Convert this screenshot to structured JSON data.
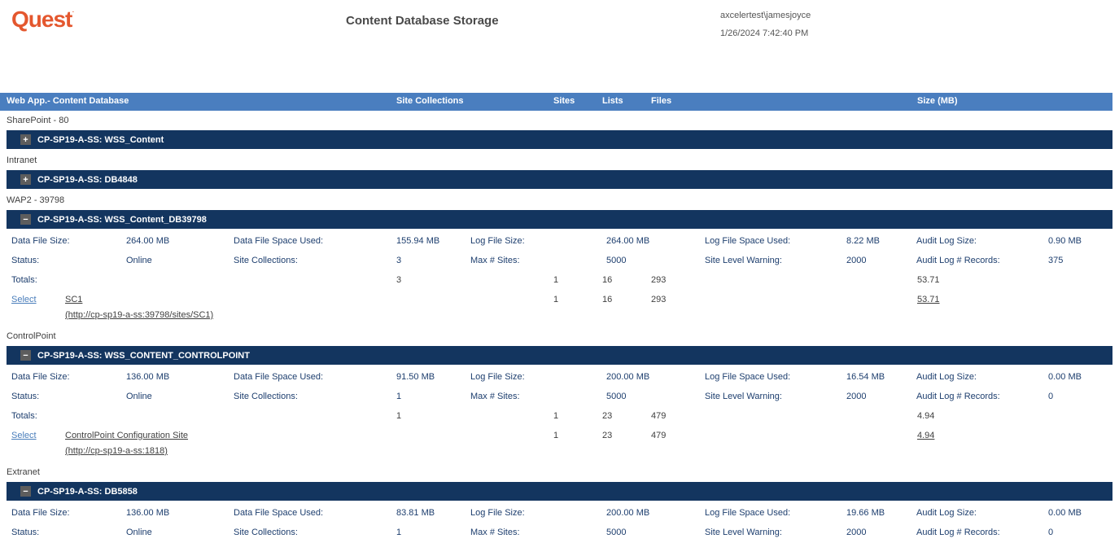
{
  "brand": {
    "logo_text": "Quest",
    "logo_color": "#E4572E"
  },
  "header": {
    "title": "Content Database Storage",
    "user": "axcelertest\\jamesjoyce",
    "timestamp": "1/26/2024 7:42:40 PM"
  },
  "colors": {
    "header_bar": "#4A7EBF",
    "group_bar": "#13355F",
    "link": "#4A7EBB"
  },
  "columns": {
    "web_app": "Web App.- Content Database",
    "site_collections": "Site Collections",
    "sites": "Sites",
    "lists": "Lists",
    "files": "Files",
    "size": "Size (MB)"
  },
  "sections": [
    {
      "web_app": "SharePoint - 80",
      "db": {
        "icon": "+",
        "name": "CP-SP19-A-SS: WSS_Content"
      }
    },
    {
      "web_app": "Intranet",
      "db": {
        "icon": "+",
        "name": "CP-SP19-A-SS: DB4848"
      }
    },
    {
      "web_app": "WAP2 - 39798",
      "db": {
        "icon": "−",
        "name": "CP-SP19-A-SS: WSS_Content_DB39798"
      },
      "detail": {
        "rows": [
          {
            "l1": "Data File Size:",
            "v1": "264.00 MB",
            "l2": "Data File Space Used:",
            "v2": "155.94 MB",
            "l3": "Log File Size:",
            "v3": "264.00 MB",
            "l4": "Log File Space Used:",
            "v4": "8.22 MB",
            "l5": "Audit Log Size:",
            "v5": "0.90 MB"
          },
          {
            "l1": "Status:",
            "v1": "Online",
            "l2": "Site Collections:",
            "v2": "3",
            "l3": "Max # Sites:",
            "v3": "5000",
            "l4": "Site Level Warning:",
            "v4": "2000",
            "l5": "Audit Log # Records:",
            "v5": "375"
          }
        ],
        "totals": {
          "label": "Totals:",
          "site_collections": "3",
          "sites": "1",
          "lists": "16",
          "files": "293",
          "size": "53.71"
        },
        "site": {
          "select_label": "Select",
          "name": "SC1",
          "url": "(http://cp-sp19-a-ss:39798/sites/SC1)",
          "sites": "1",
          "lists": "16",
          "files": "293",
          "size": "53.71"
        }
      }
    },
    {
      "web_app": "ControlPoint",
      "db": {
        "icon": "−",
        "name": "CP-SP19-A-SS: WSS_CONTENT_CONTROLPOINT"
      },
      "detail": {
        "rows": [
          {
            "l1": "Data File Size:",
            "v1": "136.00 MB",
            "l2": "Data File Space Used:",
            "v2": "91.50 MB",
            "l3": "Log File Size:",
            "v3": "200.00 MB",
            "l4": "Log File Space Used:",
            "v4": "16.54 MB",
            "l5": "Audit Log Size:",
            "v5": "0.00 MB"
          },
          {
            "l1": "Status:",
            "v1": "Online",
            "l2": "Site Collections:",
            "v2": "1",
            "l3": "Max # Sites:",
            "v3": "5000",
            "l4": "Site Level Warning:",
            "v4": "2000",
            "l5": "Audit Log # Records:",
            "v5": "0"
          }
        ],
        "totals": {
          "label": "Totals:",
          "site_collections": "1",
          "sites": "1",
          "lists": "23",
          "files": "479",
          "size": "4.94"
        },
        "site": {
          "select_label": "Select",
          "name": "ControlPoint Configuration Site",
          "url": "(http://cp-sp19-a-ss:1818)",
          "sites": "1",
          "lists": "23",
          "files": "479",
          "size": "4.94"
        }
      }
    },
    {
      "web_app": "Extranet",
      "db": {
        "icon": "−",
        "name": "CP-SP19-A-SS: DB5858"
      },
      "detail": {
        "rows": [
          {
            "l1": "Data File Size:",
            "v1": "136.00 MB",
            "l2": "Data File Space Used:",
            "v2": "83.81 MB",
            "l3": "Log File Size:",
            "v3": "200.00 MB",
            "l4": "Log File Space Used:",
            "v4": "19.66 MB",
            "l5": "Audit Log Size:",
            "v5": "0.00 MB"
          },
          {
            "l1": "Status:",
            "v1": "Online",
            "l2": "Site Collections:",
            "v2": "1",
            "l3": "Max # Sites:",
            "v3": "5000",
            "l4": "Site Level Warning:",
            "v4": "2000",
            "l5": "Audit Log # Records:",
            "v5": "0"
          }
        ]
      }
    }
  ]
}
